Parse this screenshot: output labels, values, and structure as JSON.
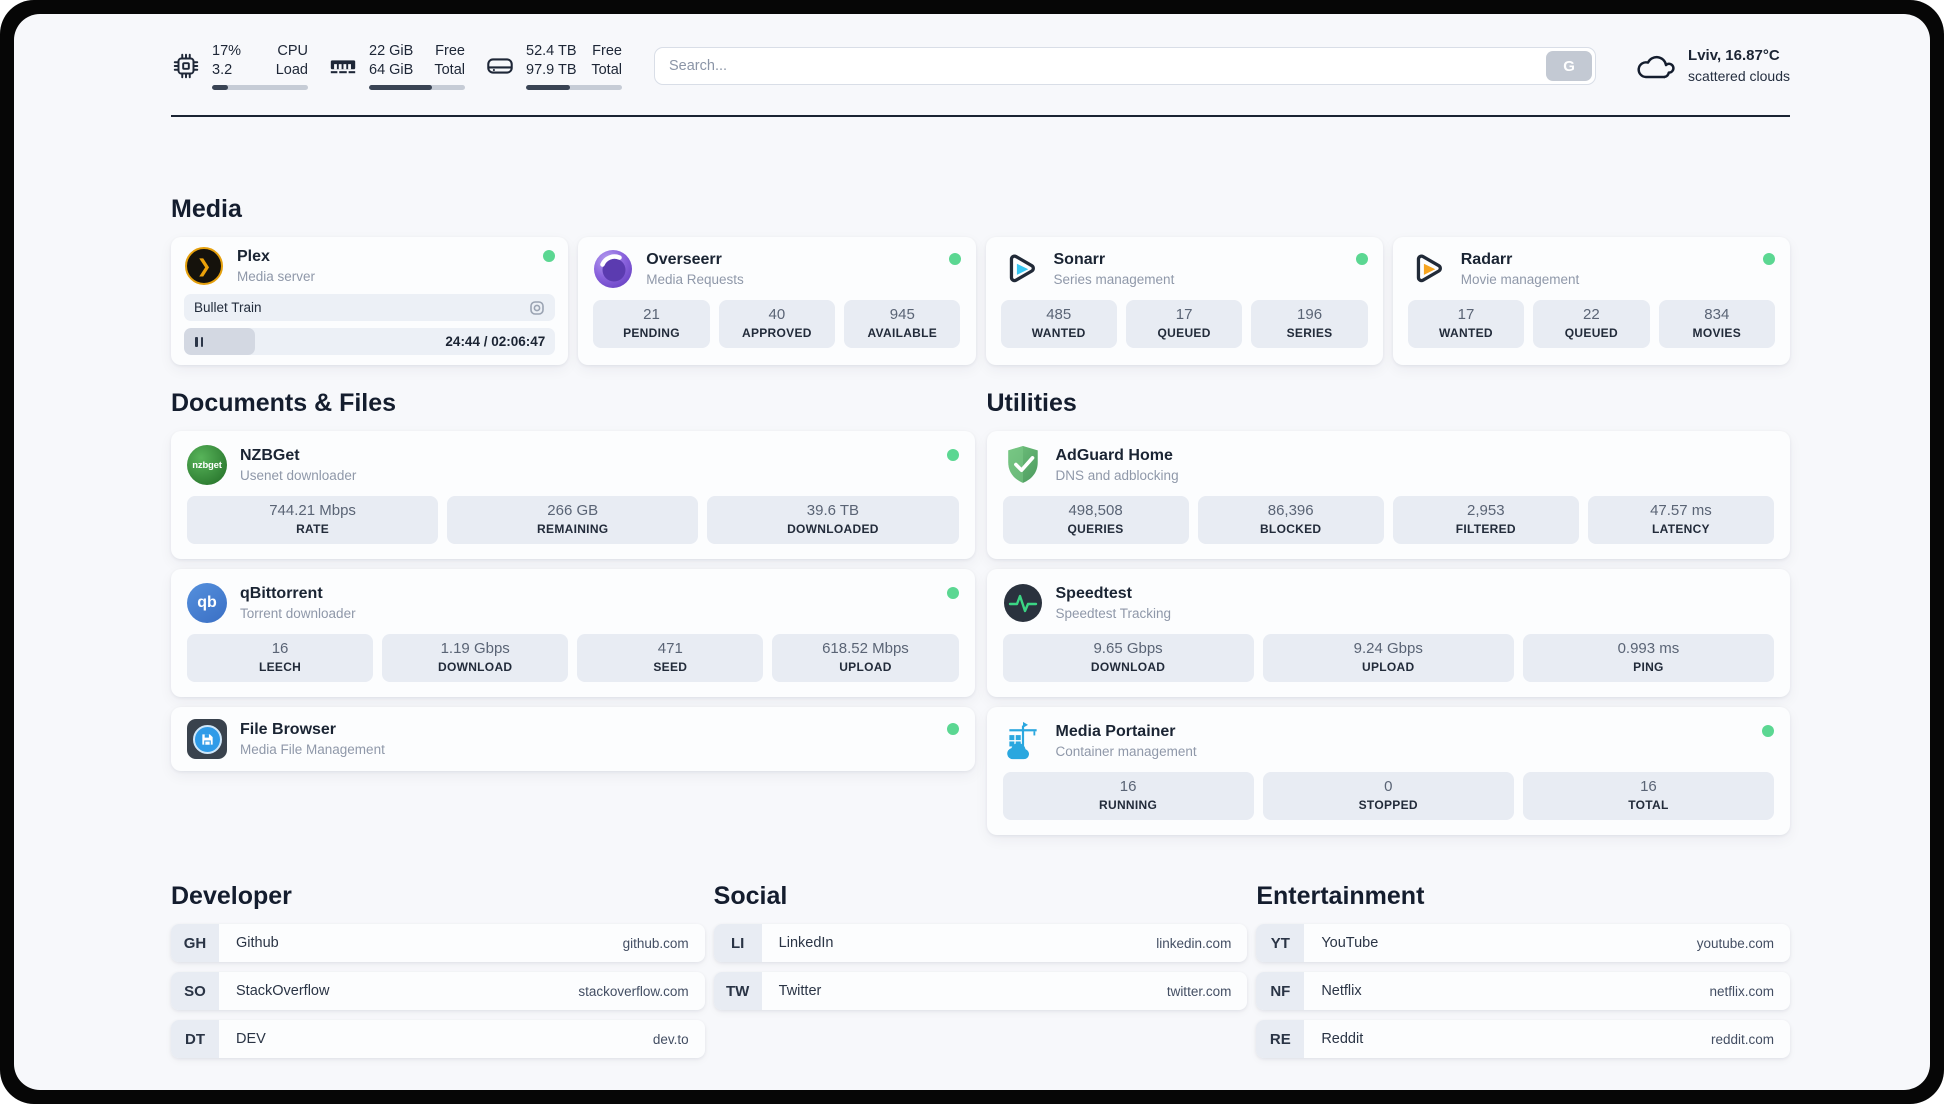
{
  "topbar": {
    "system": [
      {
        "icon": "cpu-icon",
        "value_top": "17%",
        "value_bottom": "3.2",
        "label_top": "CPU",
        "label_bottom": "Load",
        "progress_pct": 17
      },
      {
        "icon": "ram-icon",
        "value_top": "22 GiB",
        "value_bottom": "64 GiB",
        "label_top": "Free",
        "label_bottom": "Total",
        "progress_pct": 66
      },
      {
        "icon": "disk-icon",
        "value_top": "52.4 TB",
        "value_bottom": "97.9 TB",
        "label_top": "Free",
        "label_bottom": "Total",
        "progress_pct": 46
      }
    ],
    "search": {
      "placeholder": "Search...",
      "button_label": "G"
    },
    "weather": {
      "location_temp": "Lviv, 16.87°C",
      "condition": "scattered clouds"
    }
  },
  "sections": {
    "media": "Media",
    "documents": "Documents & Files",
    "utilities": "Utilities",
    "developer": "Developer",
    "social": "Social",
    "entertainment": "Entertainment"
  },
  "apps": {
    "plex": {
      "name": "Plex",
      "subtitle": "Media server",
      "online": true,
      "player": {
        "title": "Bullet Train",
        "time": "24:44 / 02:06:47",
        "progress_pct": 19
      }
    },
    "overseerr": {
      "name": "Overseerr",
      "subtitle": "Media Requests",
      "online": true,
      "stats": [
        {
          "value": "21",
          "label": "PENDING"
        },
        {
          "value": "40",
          "label": "APPROVED"
        },
        {
          "value": "945",
          "label": "AVAILABLE"
        }
      ]
    },
    "sonarr": {
      "name": "Sonarr",
      "subtitle": "Series management",
      "online": true,
      "stats": [
        {
          "value": "485",
          "label": "WANTED"
        },
        {
          "value": "17",
          "label": "QUEUED"
        },
        {
          "value": "196",
          "label": "SERIES"
        }
      ]
    },
    "radarr": {
      "name": "Radarr",
      "subtitle": "Movie management",
      "online": true,
      "stats": [
        {
          "value": "17",
          "label": "WANTED"
        },
        {
          "value": "22",
          "label": "QUEUED"
        },
        {
          "value": "834",
          "label": "MOVIES"
        }
      ]
    },
    "nzbget": {
      "name": "NZBGet",
      "subtitle": "Usenet downloader",
      "online": true,
      "icon_text": "nzbget",
      "stats": [
        {
          "value": "744.21 Mbps",
          "label": "RATE"
        },
        {
          "value": "266 GB",
          "label": "REMAINING"
        },
        {
          "value": "39.6 TB",
          "label": "DOWNLOADED"
        }
      ]
    },
    "qbittorrent": {
      "name": "qBittorrent",
      "subtitle": "Torrent downloader",
      "online": true,
      "icon_text": "qb",
      "stats": [
        {
          "value": "16",
          "label": "LEECH"
        },
        {
          "value": "1.19 Gbps",
          "label": "DOWNLOAD"
        },
        {
          "value": "471",
          "label": "SEED"
        },
        {
          "value": "618.52 Mbps",
          "label": "UPLOAD"
        }
      ]
    },
    "filebrowser": {
      "name": "File Browser",
      "subtitle": "Media File Management",
      "online": true
    },
    "adguard": {
      "name": "AdGuard Home",
      "subtitle": "DNS and adblocking",
      "stats": [
        {
          "value": "498,508",
          "label": "QUERIES"
        },
        {
          "value": "86,396",
          "label": "BLOCKED"
        },
        {
          "value": "2,953",
          "label": "FILTERED"
        },
        {
          "value": "47.57 ms",
          "label": "LATENCY"
        }
      ]
    },
    "speedtest": {
      "name": "Speedtest",
      "subtitle": "Speedtest Tracking",
      "stats": [
        {
          "value": "9.65 Gbps",
          "label": "DOWNLOAD"
        },
        {
          "value": "9.24 Gbps",
          "label": "UPLOAD"
        },
        {
          "value": "0.993 ms",
          "label": "PING"
        }
      ]
    },
    "portainer": {
      "name": "Media Portainer",
      "subtitle": "Container management",
      "online": true,
      "stats": [
        {
          "value": "16",
          "label": "RUNNING"
        },
        {
          "value": "0",
          "label": "STOPPED"
        },
        {
          "value": "16",
          "label": "TOTAL"
        }
      ]
    }
  },
  "bookmarks": {
    "developer": [
      {
        "abbr": "GH",
        "name": "Github",
        "url": "github.com"
      },
      {
        "abbr": "SO",
        "name": "StackOverflow",
        "url": "stackoverflow.com"
      },
      {
        "abbr": "DT",
        "name": "DEV",
        "url": "dev.to"
      }
    ],
    "social": [
      {
        "abbr": "LI",
        "name": "LinkedIn",
        "url": "linkedin.com"
      },
      {
        "abbr": "TW",
        "name": "Twitter",
        "url": "twitter.com"
      }
    ],
    "entertainment": [
      {
        "abbr": "YT",
        "name": "YouTube",
        "url": "youtube.com"
      },
      {
        "abbr": "NF",
        "name": "Netflix",
        "url": "netflix.com"
      },
      {
        "abbr": "RE",
        "name": "Reddit",
        "url": "reddit.com"
      }
    ]
  },
  "colors": {
    "status_online": "#5bd792",
    "text_dark": "#1a2433",
    "plex_amber": "#e5a00d",
    "sonarr_cyan": "#36c6f2",
    "radarr_amber": "#f6a41f",
    "nzbget_green": "#2e7d32",
    "qbittorrent_blue": "#3a6fc4",
    "adguard_green": "#5fae6e",
    "speedtest_green": "#3bd584",
    "portainer_blue": "#2aa7df"
  }
}
